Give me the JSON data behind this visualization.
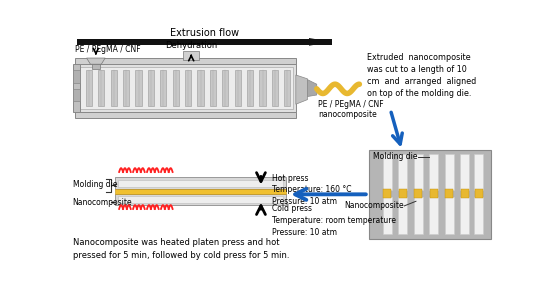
{
  "bg_color": "#ffffff",
  "extrusion_flow_text": "Extrusion flow",
  "label_pe_cnf": "PE / PEgMA / CNF",
  "label_dehydration": "Dehydration",
  "label_nanocomposite_out": "PE / PEgMA / CNF\nnanocomposite",
  "label_extruded": "Extruded  nanocomposite\nwas cut to a length of 10\ncm  and  arranged  aligned\non top of the molding die.",
  "label_hot_press": "Hot press\nTemperature: 160 °C\nPressure: 10 atm",
  "label_cold_press": "Cold press\nTemperature: room temperature\nPressure: 10 atm",
  "label_molding_die": "Molding die",
  "label_nanocomposite3": "Nanocomposite",
  "label_molding_die_right": "Molding die",
  "label_nanocomposite_right": "Nanocomposite",
  "label_bottom": "Nanocomposite was heated platen press and hot\npressed for 5 min, followed by cold press for 5 min."
}
